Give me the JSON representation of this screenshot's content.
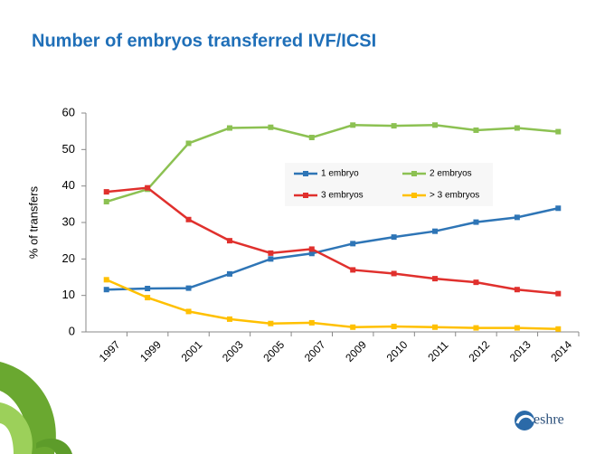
{
  "chart_data": {
    "type": "line",
    "title": "Number of embryos transferred IVF/ICSI",
    "y_label": "% of transfers",
    "categories": [
      "1997",
      "1999",
      "2001",
      "2003",
      "2005",
      "2007",
      "2009",
      "2010",
      "2011",
      "2012",
      "2013",
      "2014"
    ],
    "series": [
      {
        "name": "1 embryo",
        "color": "#2e75b6",
        "values": [
          11.6,
          11.9,
          12.0,
          15.9,
          20.0,
          21.5,
          24.2,
          26.0,
          27.6,
          30.1,
          31.4,
          33.9
        ]
      },
      {
        "name": "2 embryos",
        "color": "#8cc152",
        "values": [
          35.7,
          39.1,
          51.7,
          55.9,
          56.1,
          53.3,
          56.7,
          56.5,
          56.7,
          55.3,
          55.9,
          54.9
        ]
      },
      {
        "name": "3 embryos",
        "color": "#e0302d",
        "values": [
          38.4,
          39.5,
          30.8,
          25.0,
          21.6,
          22.7,
          17.0,
          16.0,
          14.6,
          13.6,
          11.6,
          10.5
        ]
      },
      {
        "name": "> 3 embryos",
        "color": "#ffc000",
        "values": [
          14.3,
          9.4,
          5.6,
          3.5,
          2.3,
          2.5,
          1.3,
          1.5,
          1.3,
          1.1,
          1.1,
          0.8
        ]
      }
    ],
    "ylim": [
      0,
      60
    ],
    "yticks": [
      0,
      10,
      20,
      30,
      40,
      50,
      60
    ],
    "grid": false,
    "legend": "center"
  },
  "logo_text": "eshre"
}
